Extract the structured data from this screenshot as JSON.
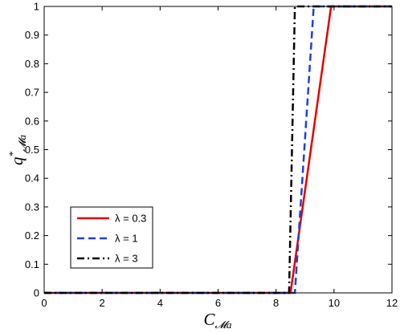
{
  "chart_data": {
    "type": "line",
    "xlabel": "C",
    "xlabel_sub": "𝓜a",
    "ylabel": "q",
    "ylabel_sup": "*",
    "ylabel_sub": "𝓜a",
    "xlim": [
      0,
      12
    ],
    "ylim": [
      0,
      1
    ],
    "xticks": [
      0,
      2,
      4,
      6,
      8,
      10,
      12
    ],
    "yticks": [
      0,
      0.1,
      0.2,
      0.3,
      0.4,
      0.5,
      0.6,
      0.7,
      0.8,
      0.9,
      1
    ],
    "grid": false,
    "legend_position": "lower-left",
    "series": [
      {
        "name": "λ = 0.3",
        "color": "#e60000",
        "dash": "solid",
        "x": [
          0,
          8.5,
          9.9,
          12
        ],
        "y": [
          0,
          0,
          1,
          1
        ]
      },
      {
        "name": "λ = 1",
        "color": "#1f3fe0",
        "dash": "dashed",
        "x": [
          0,
          8.65,
          9.3,
          12
        ],
        "y": [
          0,
          0,
          1,
          1
        ]
      },
      {
        "name": "λ = 3",
        "color": "#000000",
        "dash": "dashdot",
        "x": [
          0,
          8.45,
          8.65,
          12
        ],
        "y": [
          0,
          0,
          1,
          1
        ]
      }
    ]
  }
}
